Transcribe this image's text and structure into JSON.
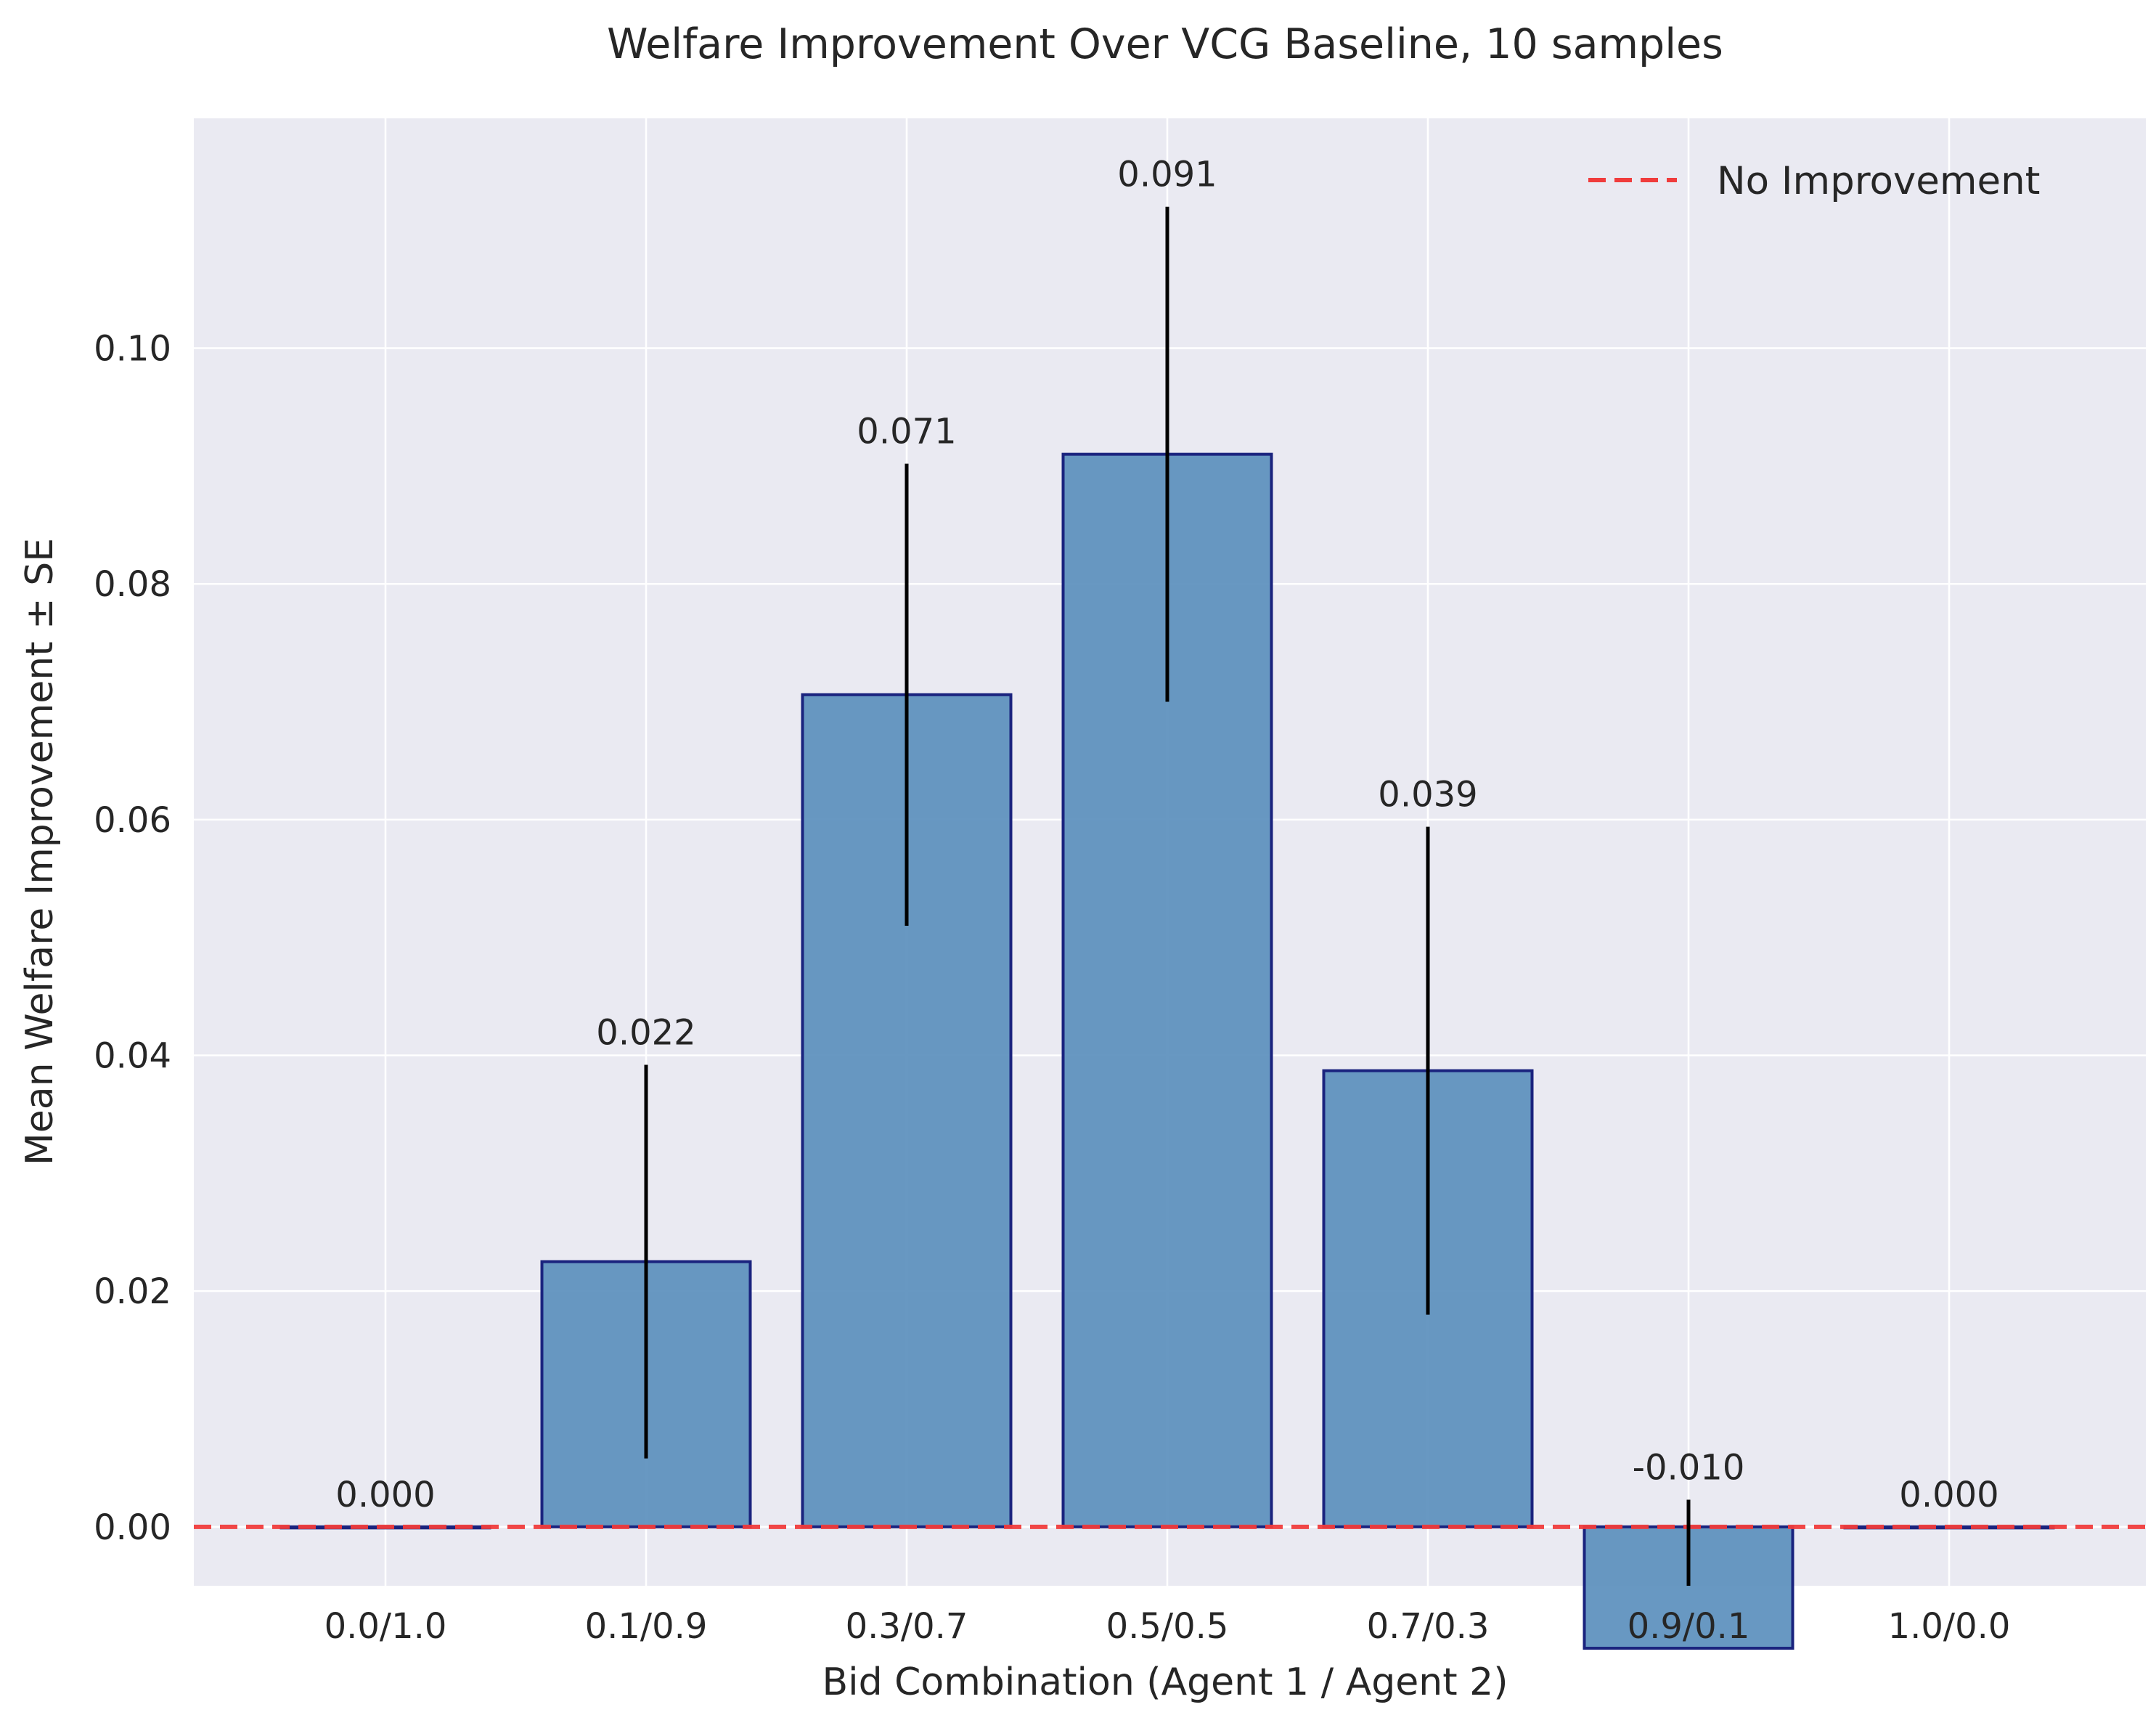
{
  "chart_data": {
    "type": "bar",
    "title": "Welfare Improvement Over VCG Baseline, 10 samples",
    "xlabel": "Bid Combination (Agent 1 / Agent 2)",
    "ylabel": "Mean Welfare Improvement ± SE",
    "categories": [
      "0.0/1.0",
      "0.1/0.9",
      "0.3/0.7",
      "0.5/0.5",
      "0.7/0.3",
      "0.9/0.1",
      "1.0/0.0"
    ],
    "values": [
      0.0,
      0.0225,
      0.0706,
      0.091,
      0.0387,
      -0.0103,
      0.0
    ],
    "errors": [
      0.0,
      0.0167,
      0.0196,
      0.021,
      0.0207,
      0.0126,
      0.0
    ],
    "data_labels": [
      "0.000",
      "0.022",
      "0.071",
      "0.091",
      "0.039",
      "-0.010",
      "0.000"
    ],
    "ylim": [
      -0.005,
      0.1195
    ],
    "yticks": [
      0.0,
      0.02,
      0.04,
      0.06,
      0.08,
      0.1
    ],
    "ytick_labels": [
      "0.00",
      "0.02",
      "0.04",
      "0.06",
      "0.08",
      "0.10"
    ],
    "reference_line": {
      "y": 0,
      "label": "No Improvement",
      "color": "#f03c3c",
      "style": "dashed"
    },
    "legend": {
      "position": "top-right",
      "entries": [
        "No Improvement"
      ]
    },
    "grid": true,
    "colors": {
      "bar_fill": "#5b8fbd",
      "bar_edge": "#1a237e",
      "error_bar": "#000000",
      "plot_background": "#eaeaf2",
      "grid": "#ffffff"
    }
  }
}
